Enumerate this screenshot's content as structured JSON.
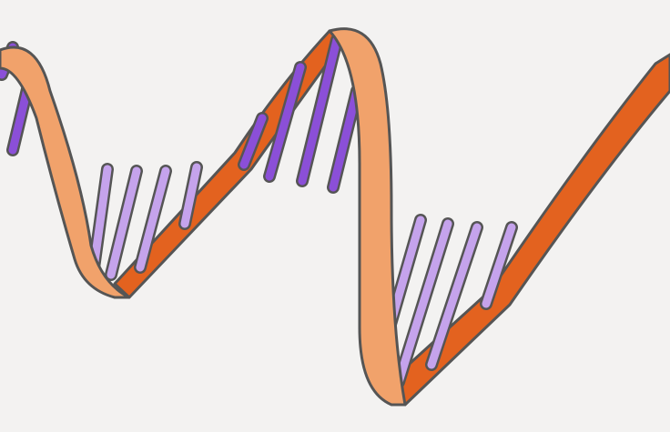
{
  "illustration": {
    "subject": "dna-double-helix",
    "colors": {
      "background": "#f3f2f1",
      "outline": "#555555",
      "strand_front": "#f1a26b",
      "strand_back": "#e3621f",
      "base_dark": "#8b4fd8",
      "base_light": "#c5a3ec"
    }
  }
}
